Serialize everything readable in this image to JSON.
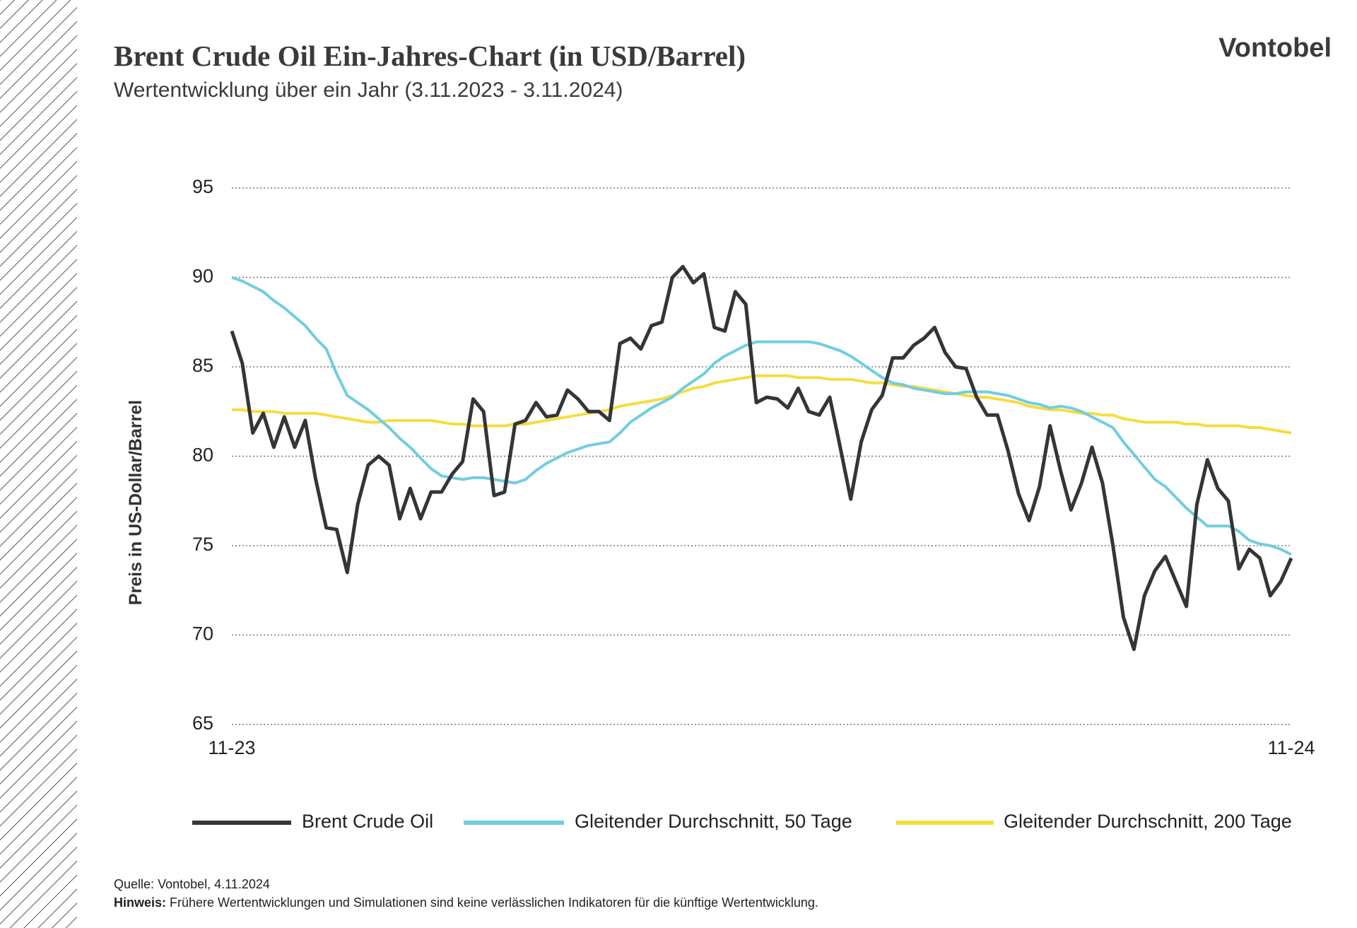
{
  "brand": "Vontobel",
  "chart_data": {
    "type": "line",
    "title": "Brent Crude Oil Ein-Jahres-Chart (in USD/Barrel)",
    "subtitle": "Wertentwicklung über ein Jahr (3.11.2023 - 3.11.2024)",
    "y_label": "Preis in US-Dollar/Barrel",
    "ylim": [
      65,
      95
    ],
    "yticks": [
      65,
      70,
      75,
      80,
      85,
      90,
      95
    ],
    "grid": true,
    "legend": "bottom",
    "categories": [
      "11-23",
      null,
      null,
      null,
      null,
      null,
      null,
      null,
      null,
      null,
      null,
      null,
      null,
      null,
      null,
      null,
      null,
      null,
      null,
      null,
      null,
      null,
      null,
      null,
      null,
      null,
      null,
      null,
      null,
      null,
      null,
      null,
      null,
      null,
      null,
      null,
      null,
      null,
      null,
      null,
      null,
      null,
      null,
      null,
      null,
      null,
      null,
      null,
      null,
      null,
      null,
      null,
      null,
      null,
      null,
      null,
      null,
      null,
      null,
      null,
      null,
      null,
      null,
      null,
      null,
      null,
      null,
      null,
      null,
      null,
      null,
      null,
      null,
      null,
      null,
      null,
      null,
      null,
      null,
      null,
      null,
      null,
      null,
      null,
      null,
      null,
      null,
      null,
      null,
      null,
      null,
      null,
      null,
      null,
      null,
      null,
      null,
      null,
      null,
      null,
      null,
      "11-24"
    ],
    "series": [
      {
        "name": "Brent Crude Oil",
        "color": "#333636",
        "width": 5,
        "values": [
          87,
          85.2,
          81.3,
          82.4,
          80.5,
          82.2,
          80.5,
          82,
          78.7,
          76,
          75.9,
          73.5,
          77.3,
          79.5,
          80,
          79.5,
          76.5,
          78.2,
          76.5,
          78,
          78,
          79,
          79.7,
          83.2,
          82.5,
          77.8,
          78,
          81.8,
          82,
          83,
          82.2,
          82.3,
          83.7,
          83.2,
          82.5,
          82.5,
          82,
          86.3,
          86.6,
          86,
          87.3,
          87.5,
          90,
          90.6,
          89.7,
          90.2,
          87.2,
          87,
          89.2,
          88.5,
          83,
          83.3,
          83.2,
          82.7,
          83.8,
          82.5,
          82.3,
          83.3,
          80.5,
          77.6,
          80.8,
          82.6,
          83.4,
          85.5,
          85.5,
          86.2,
          86.6,
          87.2,
          85.8,
          85,
          84.9,
          83.3,
          82.3,
          82.3,
          80.3,
          77.9,
          76.4,
          78.3,
          81.7,
          79.2,
          77,
          78.5,
          80.5,
          78.5,
          75,
          71,
          69.2,
          72.2,
          73.6,
          74.4,
          73,
          71.6,
          77.3,
          79.8,
          78.2,
          77.5,
          73.7,
          74.8,
          74.3,
          72.2,
          73,
          74.3
        ]
      },
      {
        "name": "Gleitender Durchschnitt, 50 Tage",
        "color": "#72cde0",
        "width": 4,
        "values": [
          90,
          89.8,
          89.5,
          89.2,
          88.7,
          88.3,
          87.8,
          87.3,
          86.6,
          86,
          84.6,
          83.4,
          83,
          82.6,
          82.1,
          81.6,
          81,
          80.5,
          79.9,
          79.3,
          78.9,
          78.8,
          78.7,
          78.8,
          78.8,
          78.7,
          78.6,
          78.5,
          78.7,
          79.2,
          79.6,
          79.9,
          80.2,
          80.4,
          80.6,
          80.7,
          80.8,
          81.3,
          81.9,
          82.3,
          82.7,
          83,
          83.3,
          83.8,
          84.2,
          84.6,
          85.2,
          85.6,
          85.9,
          86.2,
          86.4,
          86.4,
          86.4,
          86.4,
          86.4,
          86.4,
          86.3,
          86.1,
          85.9,
          85.6,
          85.2,
          84.8,
          84.4,
          84.1,
          84,
          83.8,
          83.7,
          83.6,
          83.5,
          83.5,
          83.6,
          83.6,
          83.6,
          83.5,
          83.4,
          83.2,
          83,
          82.9,
          82.7,
          82.8,
          82.7,
          82.5,
          82.2,
          81.9,
          81.6,
          80.8,
          80.1,
          79.4,
          78.7,
          78.3,
          77.7,
          77.1,
          76.6,
          76.1,
          76.1,
          76.1,
          75.8,
          75.3,
          75.1,
          75,
          74.8,
          74.5
        ]
      },
      {
        "name": "Gleitender Durchschnitt, 200 Tage",
        "color": "#f5dd3f",
        "width": 4,
        "values": [
          82.6,
          82.6,
          82.5,
          82.5,
          82.5,
          82.4,
          82.4,
          82.4,
          82.4,
          82.3,
          82.2,
          82.1,
          82,
          81.9,
          81.9,
          82,
          82,
          82,
          82,
          82,
          81.9,
          81.8,
          81.8,
          81.7,
          81.7,
          81.7,
          81.7,
          81.8,
          81.8,
          81.9,
          82,
          82.1,
          82.2,
          82.3,
          82.4,
          82.5,
          82.6,
          82.8,
          82.9,
          83,
          83.1,
          83.2,
          83.4,
          83.6,
          83.8,
          83.9,
          84.1,
          84.2,
          84.3,
          84.4,
          84.5,
          84.5,
          84.5,
          84.5,
          84.4,
          84.4,
          84.4,
          84.3,
          84.3,
          84.3,
          84.2,
          84.1,
          84.1,
          84,
          83.9,
          83.9,
          83.8,
          83.7,
          83.6,
          83.5,
          83.4,
          83.3,
          83.3,
          83.2,
          83.1,
          83,
          82.8,
          82.7,
          82.6,
          82.6,
          82.5,
          82.4,
          82.4,
          82.3,
          82.3,
          82.1,
          82,
          81.9,
          81.9,
          81.9,
          81.9,
          81.8,
          81.8,
          81.7,
          81.7,
          81.7,
          81.7,
          81.6,
          81.6,
          81.5,
          81.4,
          81.3
        ]
      }
    ]
  },
  "footer": {
    "source_label": "Quelle:",
    "source": "Vontobel, 4.11.2024",
    "note_label": "Hinweis:",
    "note": "Frühere Wertentwicklungen und Simulationen sind keine verlässlichen Indikatoren für die künftige Wertentwicklung."
  }
}
